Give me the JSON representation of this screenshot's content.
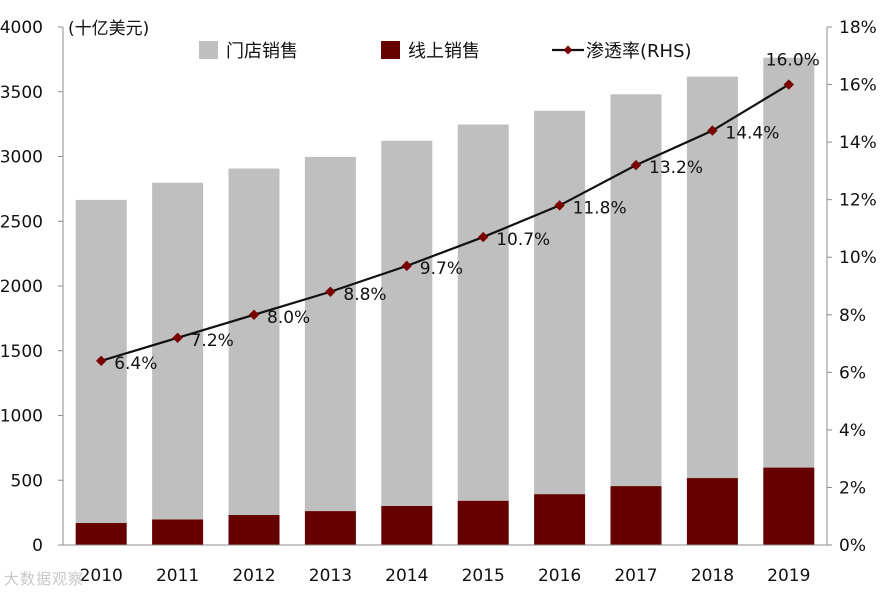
{
  "chart_data": {
    "type": "bar",
    "stacked": true,
    "unit_label": "(十亿美元)",
    "categories": [
      "2010",
      "2011",
      "2012",
      "2013",
      "2014",
      "2015",
      "2016",
      "2017",
      "2018",
      "2019"
    ],
    "series": [
      {
        "name": "门店销售",
        "kind": "bar",
        "axis": "left",
        "color": "#bfbfbf",
        "values": [
          2495,
          2600,
          2675,
          2735,
          2820,
          2905,
          2960,
          3025,
          3100,
          3165
        ]
      },
      {
        "name": "线上销售",
        "kind": "bar",
        "axis": "left",
        "color": "#660000",
        "values": [
          170,
          198,
          232,
          262,
          302,
          342,
          393,
          455,
          517,
          598
        ]
      },
      {
        "name": "渗透率(RHS)",
        "kind": "line",
        "axis": "right",
        "color": "#111111",
        "marker_color": "#7a0000",
        "values": [
          6.4,
          7.2,
          8.0,
          8.8,
          9.7,
          10.7,
          11.8,
          13.2,
          14.4,
          16.0
        ],
        "labels": [
          "6.4%",
          "7.2%",
          "8.0%",
          "8.8%",
          "9.7%",
          "10.7%",
          "11.8%",
          "13.2%",
          "14.4%",
          "16.0%"
        ]
      }
    ],
    "ylim_left": [
      0,
      4000
    ],
    "yticks_left": [
      "0",
      "500",
      "1000",
      "1500",
      "2000",
      "2500",
      "3000",
      "3500",
      "4000"
    ],
    "ylim_right": [
      0,
      18
    ],
    "yticks_right": [
      "0%",
      "2%",
      "4%",
      "6%",
      "8%",
      "10%",
      "12%",
      "14%",
      "16%",
      "18%"
    ],
    "grid": false,
    "legend_position": "top"
  },
  "watermark": "大数据观察"
}
